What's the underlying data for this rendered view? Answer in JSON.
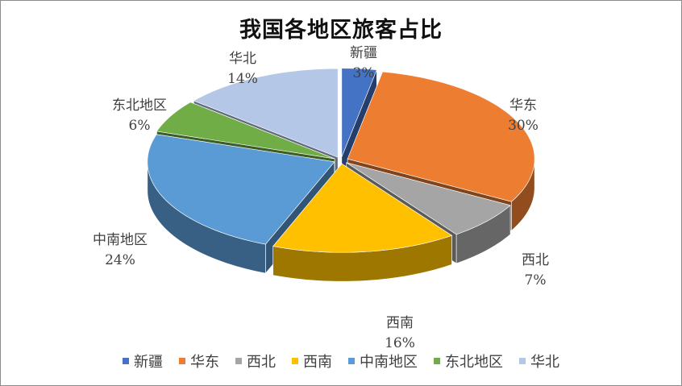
{
  "chart_data": {
    "type": "pie",
    "style": "3d-exploded",
    "title": "我国各地区旅客占比",
    "unit": "%",
    "categories": [
      "新疆",
      "华东",
      "西北",
      "西南",
      "中南地区",
      "东北地区",
      "华北"
    ],
    "values": [
      3,
      30,
      7,
      16,
      24,
      6,
      14
    ],
    "colors": [
      "#4472C4",
      "#ED7D31",
      "#A5A5A5",
      "#FFC000",
      "#5B9BD5",
      "#70AD47",
      "#B4C7E7"
    ],
    "legend": "bottom"
  }
}
